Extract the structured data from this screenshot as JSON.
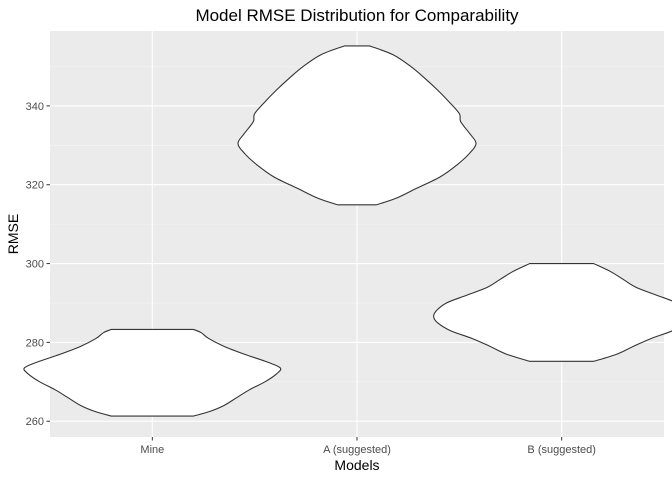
{
  "chart_data": {
    "type": "violin",
    "title": "Model RMSE Distribution for Comparability",
    "xlabel": "Models",
    "ylabel": "RMSE",
    "categories": [
      "Mine",
      "A (suggested)",
      "B (suggested)"
    ],
    "ylim": [
      256,
      359
    ],
    "yticks": [
      260,
      280,
      300,
      320,
      340
    ],
    "y_minor_ticks": [
      270,
      290,
      310,
      330,
      350
    ],
    "grid": true,
    "legend": "none",
    "series": [
      {
        "category": "Mine",
        "min": 261.3,
        "max": 283.3,
        "profile": [
          [
            261.3,
            0.32
          ],
          [
            262.5,
            0.45
          ],
          [
            264,
            0.56
          ],
          [
            266,
            0.66
          ],
          [
            268,
            0.76
          ],
          [
            270,
            0.88
          ],
          [
            272,
            0.97
          ],
          [
            273.5,
            1.0
          ],
          [
            275,
            0.9
          ],
          [
            277,
            0.72
          ],
          [
            279,
            0.56
          ],
          [
            281,
            0.44
          ],
          [
            282.5,
            0.38
          ],
          [
            283.3,
            0.32
          ]
        ]
      },
      {
        "category": "A (suggested)",
        "min": 314.9,
        "max": 355.2,
        "profile": [
          [
            314.9,
            0.15
          ],
          [
            316.5,
            0.3
          ],
          [
            319,
            0.46
          ],
          [
            322,
            0.65
          ],
          [
            325,
            0.78
          ],
          [
            328,
            0.88
          ],
          [
            330.5,
            0.93
          ],
          [
            333,
            0.88
          ],
          [
            336,
            0.81
          ],
          [
            338,
            0.8
          ],
          [
            341,
            0.72
          ],
          [
            344,
            0.63
          ],
          [
            347,
            0.53
          ],
          [
            350,
            0.42
          ],
          [
            353,
            0.28
          ],
          [
            355.2,
            0.1
          ]
        ]
      },
      {
        "category": "B (suggested)",
        "min": 275.2,
        "max": 300.0,
        "profile": [
          [
            275.2,
            0.25
          ],
          [
            277,
            0.43
          ],
          [
            279,
            0.56
          ],
          [
            281,
            0.7
          ],
          [
            283,
            0.87
          ],
          [
            285,
            0.97
          ],
          [
            286.5,
            1.0
          ],
          [
            288,
            0.98
          ],
          [
            290,
            0.9
          ],
          [
            292,
            0.74
          ],
          [
            294,
            0.58
          ],
          [
            296,
            0.48
          ],
          [
            298,
            0.38
          ],
          [
            300.0,
            0.25
          ]
        ]
      }
    ]
  },
  "colors": {
    "panel_background": "#EBEBEB",
    "grid_major": "#FFFFFF",
    "violin_fill": "#FFFFFF",
    "violin_stroke": "#333333",
    "tick_label": "#4D4D4D",
    "tick_mark": "#333333"
  }
}
